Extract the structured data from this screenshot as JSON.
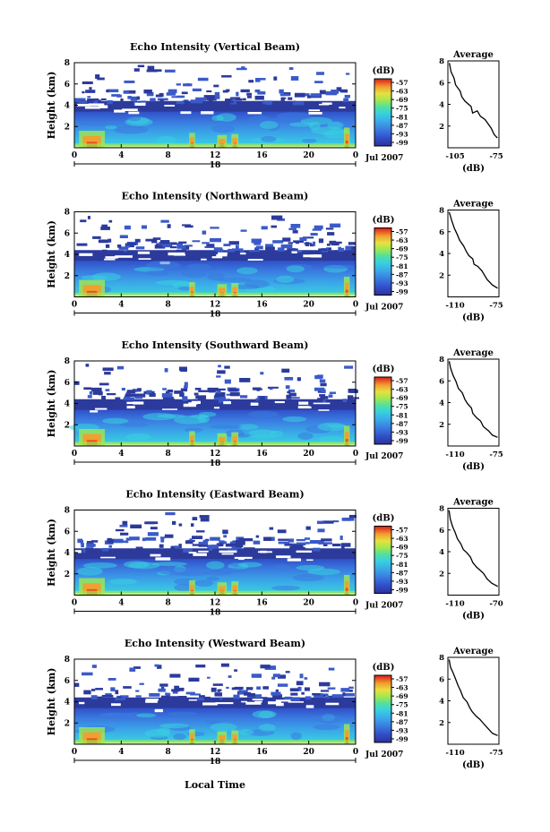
{
  "figure": {
    "xlabel_bottom": "Local Time"
  },
  "colorbar": {
    "unit": "(dB)",
    "ticks": [
      "-57",
      "-63",
      "-69",
      "-75",
      "-81",
      "-87",
      "-93",
      "-99"
    ],
    "colors": [
      "#30309a",
      "#3050c8",
      "#3a7ae0",
      "#3aa8e8",
      "#38d0e0",
      "#50e0a0",
      "#a0e850",
      "#e8e040",
      "#f0a030",
      "#e85020",
      "#c82020"
    ]
  },
  "panels": [
    {
      "title": "Echo Intensity (Vertical Beam)",
      "avg_xticks": [
        "-105",
        "-75"
      ],
      "avg_points": [
        [
          -107,
          7.8
        ],
        [
          -106,
          7.0
        ],
        [
          -104,
          6.4
        ],
        [
          -103,
          5.8
        ],
        [
          -100,
          5.2
        ],
        [
          -99,
          4.7
        ],
        [
          -97,
          4.3
        ],
        [
          -93,
          3.8
        ],
        [
          -92,
          3.2
        ],
        [
          -89,
          3.4
        ],
        [
          -87,
          2.9
        ],
        [
          -84,
          2.6
        ],
        [
          -82,
          2.2
        ],
        [
          -80,
          1.8
        ],
        [
          -78,
          1.2
        ],
        [
          -76,
          0.9
        ]
      ]
    },
    {
      "title": "Echo Intensity (Northward Beam)",
      "avg_xticks": [
        "-110",
        "-75"
      ],
      "avg_points": [
        [
          -111,
          7.8
        ],
        [
          -109,
          7.0
        ],
        [
          -107,
          6.3
        ],
        [
          -105,
          5.8
        ],
        [
          -103,
          5.2
        ],
        [
          -100,
          4.7
        ],
        [
          -98,
          4.2
        ],
        [
          -96,
          3.8
        ],
        [
          -93,
          3.5
        ],
        [
          -92,
          3.0
        ],
        [
          -89,
          2.8
        ],
        [
          -86,
          2.4
        ],
        [
          -84,
          2.0
        ],
        [
          -82,
          1.6
        ],
        [
          -78,
          1.1
        ],
        [
          -74,
          0.8
        ]
      ]
    },
    {
      "title": "Echo Intensity (Southward Beam)",
      "avg_xticks": [
        "-110",
        "-75"
      ],
      "avg_points": [
        [
          -111,
          7.8
        ],
        [
          -110,
          7.2
        ],
        [
          -108,
          6.5
        ],
        [
          -106,
          6.0
        ],
        [
          -104,
          5.3
        ],
        [
          -101,
          4.9
        ],
        [
          -99,
          4.3
        ],
        [
          -97,
          3.9
        ],
        [
          -94,
          3.5
        ],
        [
          -93,
          3.0
        ],
        [
          -90,
          2.6
        ],
        [
          -87,
          2.3
        ],
        [
          -85,
          1.8
        ],
        [
          -81,
          1.4
        ],
        [
          -78,
          1.0
        ],
        [
          -74,
          0.8
        ]
      ]
    },
    {
      "title": "Echo Intensity (Eastward Beam)",
      "avg_xticks": [
        "-110",
        "-70"
      ],
      "avg_points": [
        [
          -111,
          7.8
        ],
        [
          -110,
          7.0
        ],
        [
          -108,
          6.3
        ],
        [
          -106,
          5.8
        ],
        [
          -104,
          5.2
        ],
        [
          -101,
          4.7
        ],
        [
          -99,
          4.2
        ],
        [
          -96,
          3.9
        ],
        [
          -93,
          3.5
        ],
        [
          -91,
          3.0
        ],
        [
          -88,
          2.6
        ],
        [
          -85,
          2.3
        ],
        [
          -82,
          2.0
        ],
        [
          -79,
          1.5
        ],
        [
          -75,
          1.1
        ],
        [
          -70,
          0.8
        ]
      ]
    },
    {
      "title": "Echo Intensity (Westward Beam)",
      "avg_xticks": [
        "-110",
        "-75"
      ],
      "avg_points": [
        [
          -112,
          7.8
        ],
        [
          -111,
          7.1
        ],
        [
          -109,
          6.6
        ],
        [
          -107,
          6.0
        ],
        [
          -105,
          5.4
        ],
        [
          -103,
          4.9
        ],
        [
          -101,
          4.3
        ],
        [
          -98,
          3.9
        ],
        [
          -96,
          3.4
        ],
        [
          -94,
          3.0
        ],
        [
          -91,
          2.6
        ],
        [
          -88,
          2.3
        ],
        [
          -85,
          1.9
        ],
        [
          -82,
          1.5
        ],
        [
          -78,
          1.0
        ],
        [
          -74,
          0.8
        ]
      ]
    }
  ],
  "shared": {
    "ylabel": "Height (km)",
    "yticks": [
      "2",
      "4",
      "6",
      "8"
    ],
    "xticks": [
      "0",
      "4",
      "8",
      "12",
      "16",
      "20",
      "0"
    ],
    "date_label": "Jul 2007",
    "date_day": "18",
    "avg_title": "Average",
    "avg_xlabel": "(dB)",
    "avg_yticks": [
      "2",
      "4",
      "6",
      "8"
    ]
  },
  "chart_data": [
    {
      "type": "heatmap",
      "title": "Echo Intensity (Vertical Beam)",
      "ylabel": "Height (km)",
      "ylim": [
        0,
        8
      ],
      "xlim": [
        0,
        24
      ],
      "x_tick_labels": [
        "0",
        "4",
        "8",
        "12",
        "16",
        "20",
        "0"
      ],
      "y_tick_labels": [
        "2",
        "4",
        "6",
        "8"
      ],
      "colorbar_unit": "(dB)",
      "colorbar_ticks": [
        -57,
        -63,
        -69,
        -75,
        -81,
        -87,
        -93,
        -99
      ]
    },
    {
      "type": "heatmap",
      "title": "Echo Intensity (Northward Beam)",
      "ylabel": "Height (km)",
      "ylim": [
        0,
        8
      ],
      "xlim": [
        0,
        24
      ],
      "x_tick_labels": [
        "0",
        "4",
        "8",
        "12",
        "16",
        "20",
        "0"
      ],
      "y_tick_labels": [
        "2",
        "4",
        "6",
        "8"
      ],
      "colorbar_unit": "(dB)",
      "colorbar_ticks": [
        -57,
        -63,
        -69,
        -75,
        -81,
        -87,
        -93,
        -99
      ]
    },
    {
      "type": "heatmap",
      "title": "Echo Intensity (Southward Beam)",
      "ylabel": "Height (km)",
      "ylim": [
        0,
        8
      ],
      "xlim": [
        0,
        24
      ],
      "x_tick_labels": [
        "0",
        "4",
        "8",
        "12",
        "16",
        "20",
        "0"
      ],
      "y_tick_labels": [
        "2",
        "4",
        "6",
        "8"
      ],
      "colorbar_unit": "(dB)",
      "colorbar_ticks": [
        -57,
        -63,
        -69,
        -75,
        -81,
        -87,
        -93,
        -99
      ]
    },
    {
      "type": "heatmap",
      "title": "Echo Intensity (Eastward Beam)",
      "ylabel": "Height (km)",
      "ylim": [
        0,
        8
      ],
      "xlim": [
        0,
        24
      ],
      "x_tick_labels": [
        "0",
        "4",
        "8",
        "12",
        "16",
        "20",
        "0"
      ],
      "y_tick_labels": [
        "2",
        "4",
        "6",
        "8"
      ],
      "colorbar_unit": "(dB)",
      "colorbar_ticks": [
        -57,
        -63,
        -69,
        -75,
        -81,
        -87,
        -93,
        -99
      ]
    },
    {
      "type": "heatmap",
      "title": "Echo Intensity (Westward Beam)",
      "ylabel": "Height (km)",
      "xlabel": "Local Time",
      "ylim": [
        0,
        8
      ],
      "xlim": [
        0,
        24
      ],
      "x_tick_labels": [
        "0",
        "4",
        "8",
        "12",
        "16",
        "20",
        "0"
      ],
      "y_tick_labels": [
        "2",
        "4",
        "6",
        "8"
      ],
      "colorbar_unit": "(dB)",
      "colorbar_ticks": [
        -57,
        -63,
        -69,
        -75,
        -81,
        -87,
        -93,
        -99
      ]
    },
    {
      "type": "line",
      "title": "Average",
      "xlabel": "(dB)",
      "ylim": [
        0,
        8
      ]
    }
  ]
}
